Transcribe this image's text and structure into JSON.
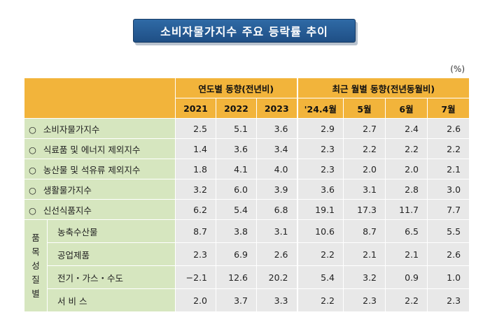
{
  "title": "소비자물가지수 주요 등락률 추이",
  "unit": "(%)",
  "header": {
    "annual_group": "연도별 동향(전년비)",
    "monthly_group": "최근 월별 동향(전년동월비)",
    "columns": [
      "2021",
      "2022",
      "2023",
      "'24.4월",
      "5월",
      "6월",
      "7월"
    ]
  },
  "bullet": "○",
  "rows": [
    {
      "label": "소비자물가지수",
      "values": [
        "2.5",
        "5.1",
        "3.6",
        "2.9",
        "2.7",
        "2.4",
        "2.6"
      ]
    },
    {
      "label": "식료품 및 에너지 제외지수",
      "values": [
        "1.4",
        "3.6",
        "3.4",
        "2.3",
        "2.2",
        "2.2",
        "2.2"
      ]
    },
    {
      "label": "농산물 및 석유류 제외지수",
      "values": [
        "1.8",
        "4.1",
        "4.0",
        "2.3",
        "2.0",
        "2.0",
        "2.1"
      ]
    },
    {
      "label": "생활물가지수",
      "values": [
        "3.2",
        "6.0",
        "3.9",
        "3.6",
        "3.1",
        "2.8",
        "3.0"
      ]
    },
    {
      "label": "신선식품지수",
      "values": [
        "6.2",
        "5.4",
        "6.8",
        "19.1",
        "17.3",
        "11.7",
        "7.7"
      ]
    }
  ],
  "group_label": [
    "품",
    "목",
    "성",
    "질",
    "별"
  ],
  "group_rows": [
    {
      "label": "농축수산물",
      "values": [
        "8.7",
        "3.8",
        "3.1",
        "10.6",
        "8.7",
        "6.5",
        "5.5"
      ]
    },
    {
      "label": "공업제품",
      "values": [
        "2.3",
        "6.9",
        "2.6",
        "2.2",
        "2.1",
        "2.1",
        "2.6"
      ]
    },
    {
      "label": "전기・가스・수도",
      "values": [
        "−2.1",
        "12.6",
        "20.2",
        "5.4",
        "3.2",
        "0.9",
        "1.0"
      ]
    },
    {
      "label": "서 비 스",
      "values": [
        "2.0",
        "3.7",
        "3.3",
        "2.2",
        "2.3",
        "2.2",
        "2.3"
      ]
    }
  ]
}
